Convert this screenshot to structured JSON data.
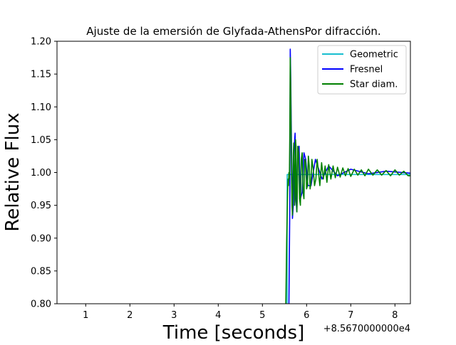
{
  "chart_data": {
    "type": "line",
    "title": "Ajuste de la emersión de Glyfada-AthensPor difracción.",
    "xlabel": "Time [seconds]",
    "ylabel": "Relative Flux",
    "x_offset_label": "+8.5670000000e4",
    "xlim": [
      0.35,
      8.35
    ],
    "ylim": [
      0.8,
      1.2
    ],
    "x_ticks": [
      1,
      2,
      3,
      4,
      5,
      6,
      7,
      8
    ],
    "x_tick_labels": [
      "1",
      "2",
      "3",
      "4",
      "5",
      "6",
      "7",
      "8"
    ],
    "y_ticks": [
      0.8,
      0.85,
      0.9,
      0.95,
      1.0,
      1.05,
      1.1,
      1.15,
      1.2
    ],
    "y_tick_labels": [
      "0.80",
      "0.85",
      "0.90",
      "0.95",
      "1.00",
      "1.05",
      "1.10",
      "1.15",
      "1.20"
    ],
    "grid": false,
    "legend_position": "top-right",
    "series": [
      {
        "name": "Geometric",
        "color": "#17becf",
        "x": [
          5.55,
          5.56,
          5.56,
          5.66,
          5.66,
          8.35
        ],
        "y": [
          0.8,
          0.8,
          0.997,
          0.997,
          0.997,
          0.997
        ]
      },
      {
        "name": "Fresnel",
        "color": "#0000ff",
        "x": [
          5.6,
          5.62,
          5.63,
          5.64,
          5.66,
          5.68,
          5.7,
          5.72,
          5.74,
          5.76,
          5.78,
          5.8,
          5.83,
          5.86,
          5.9,
          5.94,
          5.98,
          6.03,
          6.1,
          6.2,
          6.35,
          6.5,
          6.7,
          7.0,
          7.4,
          7.8,
          8.35
        ],
        "y": [
          0.8,
          0.95,
          1.188,
          1.15,
          1.03,
          0.93,
          0.95,
          1.04,
          1.06,
          0.96,
          0.94,
          1.03,
          1.04,
          0.96,
          0.97,
          1.03,
          1.02,
          0.98,
          0.98,
          1.02,
          0.99,
          1.01,
          0.995,
          1.005,
          0.998,
          1.002,
          0.999
        ]
      },
      {
        "name": "Star diam.",
        "color": "#008000",
        "x": [
          5.53,
          5.55,
          5.57,
          5.58,
          5.59,
          5.6,
          5.61,
          5.62,
          5.63,
          5.64,
          5.65,
          5.66,
          5.67,
          5.68,
          5.69,
          5.7,
          5.71,
          5.72,
          5.73,
          5.74,
          5.75,
          5.76,
          5.77,
          5.78,
          5.79,
          5.8,
          5.82,
          5.84,
          5.86,
          5.88,
          5.9,
          5.92,
          5.94,
          5.96,
          5.98,
          6.0,
          6.02,
          6.04,
          6.06,
          6.08,
          6.1,
          6.12,
          6.15,
          6.18,
          6.21,
          6.24,
          6.27,
          6.3,
          6.34,
          6.38,
          6.42,
          6.46,
          6.5,
          6.55,
          6.6,
          6.65,
          6.7,
          6.76,
          6.82,
          6.88,
          6.94,
          7.0,
          7.08,
          7.16,
          7.24,
          7.32,
          7.4,
          7.5,
          7.6,
          7.7,
          7.8,
          7.9,
          8.0,
          8.1,
          8.2,
          8.3,
          8.35
        ],
        "y": [
          0.8,
          0.9,
          0.97,
          0.99,
          0.98,
          1.0,
          0.99,
          1.06,
          1.175,
          1.13,
          1.06,
          0.99,
          0.95,
          0.935,
          0.97,
          1.03,
          1.045,
          1.01,
          0.95,
          0.96,
          1.05,
          1.04,
          0.97,
          0.94,
          0.97,
          1.04,
          1.03,
          0.96,
          0.95,
          1.02,
          1.03,
          0.97,
          0.96,
          1.02,
          1.015,
          0.975,
          0.98,
          1.025,
          1.01,
          0.975,
          0.985,
          1.02,
          1.005,
          0.98,
          0.99,
          1.02,
          1.0,
          0.98,
          1.015,
          0.99,
          1.01,
          0.985,
          1.012,
          0.99,
          1.01,
          0.992,
          1.008,
          0.993,
          1.007,
          0.995,
          1.006,
          0.994,
          1.005,
          0.996,
          1.004,
          0.995,
          1.005,
          0.996,
          1.004,
          0.996,
          1.003,
          0.995,
          1.004,
          0.996,
          1.002,
          0.995,
          0.995
        ]
      }
    ]
  }
}
